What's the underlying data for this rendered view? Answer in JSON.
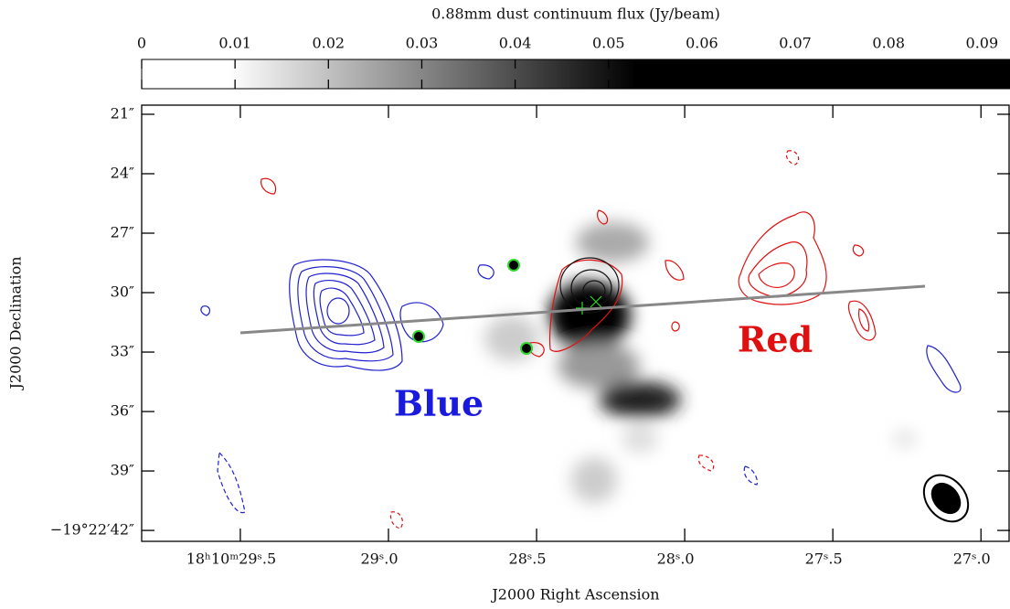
{
  "chart_data": {
    "type": "image",
    "colorbar": {
      "label": "0.88mm dust continuum flux (Jy/beam)",
      "lim": [
        0,
        0.093
      ],
      "ticks": [
        0,
        0.01,
        0.02,
        0.03,
        0.04,
        0.05,
        0.06,
        0.07,
        0.08,
        0.09
      ]
    },
    "x_label": "J2000 Right Ascension",
    "y_label": "J2000 Declination",
    "xlim": [
      29.833,
      26.902
    ],
    "xticks": [
      {
        "value": 29.5,
        "label": "18ʰ10ᵐ29ˢ.5"
      },
      {
        "value": 29.0,
        "label": "29ˢ.0"
      },
      {
        "value": 28.5,
        "label": "28ˢ.5"
      },
      {
        "value": 28.0,
        "label": "28ˢ.0"
      },
      {
        "value": 27.5,
        "label": "27ˢ.5"
      },
      {
        "value": 27.0,
        "label": "27ˢ.0"
      }
    ],
    "ylim": [
      42.55,
      20.54
    ],
    "yticks": [
      {
        "value": 21,
        "label": "21″"
      },
      {
        "value": 24,
        "label": "24″"
      },
      {
        "value": 27,
        "label": "27″"
      },
      {
        "value": 30,
        "label": "30″"
      },
      {
        "value": 33,
        "label": "33″"
      },
      {
        "value": 36,
        "label": "36″"
      },
      {
        "value": 39,
        "label": "39″"
      },
      {
        "value": 42,
        "label": "−19°22′42″"
      }
    ],
    "annotations": [
      {
        "text": "Blue",
        "color": "#1a1adf"
      },
      {
        "text": "Red",
        "color": "#e01010"
      }
    ]
  }
}
